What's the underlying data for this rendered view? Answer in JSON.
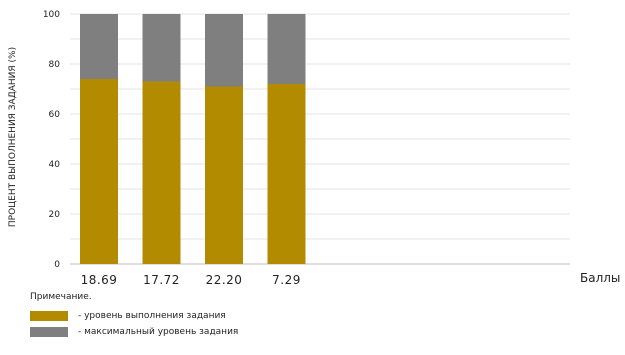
{
  "chart_data": {
    "type": "bar",
    "stacked": true,
    "categories": [
      "18.69",
      "17.72",
      "22.20",
      "7.29"
    ],
    "series": [
      {
        "name": "- уровень выполнения задания",
        "values": [
          74,
          73,
          71,
          72
        ],
        "color": "#b38b00"
      },
      {
        "name": "- максимальный уровень задания",
        "values": [
          26,
          27,
          29,
          28
        ],
        "color": "#7f7f7f"
      }
    ],
    "ylabel": "ПРОЦЕНТ ВЫПОЛНЕНИЯ ЗАДАНИЯ (%)",
    "xlabel": "Баллы",
    "ylim": [
      0,
      100
    ],
    "yticks": [
      0,
      20,
      40,
      60,
      80,
      100
    ],
    "grid": true
  },
  "legend": {
    "title": "Примечание.",
    "items": [
      {
        "label": "- уровень выполнения задания",
        "color": "#b38b00"
      },
      {
        "label": "- максимальный уровень задания",
        "color": "#7f7f7f"
      }
    ]
  }
}
